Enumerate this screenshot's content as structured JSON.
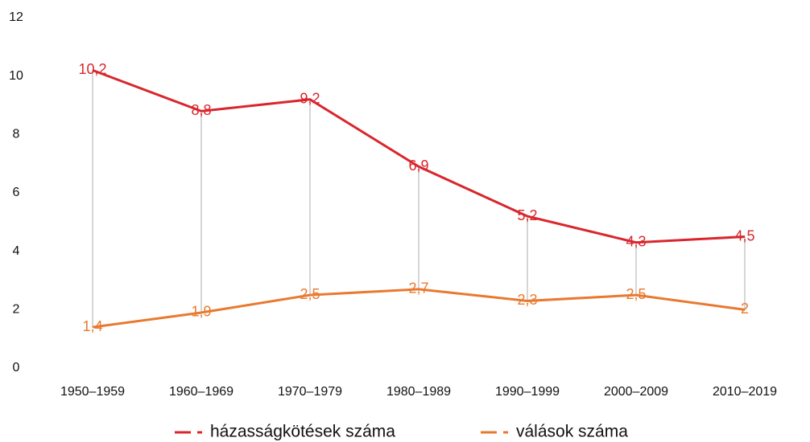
{
  "chart_data": {
    "type": "line",
    "categories": [
      "1950–1959",
      "1960–1969",
      "1970–1979",
      "1980–1989",
      "1990–1999",
      "2000–2009",
      "2010–2019"
    ],
    "series": [
      {
        "name": "házasságkötések száma",
        "color": "#d9262c",
        "values": [
          10.2,
          8.8,
          9.2,
          6.9,
          5.2,
          4.3,
          4.5
        ],
        "value_labels": [
          "10,2",
          "8,8",
          "9,2",
          "6,9",
          "5,2",
          "4,3",
          "4,5"
        ]
      },
      {
        "name": "válások száma",
        "color": "#e9792f",
        "values": [
          1.4,
          1.9,
          2.5,
          2.7,
          2.3,
          2.5,
          2
        ],
        "value_labels": [
          "1,4",
          "1,9",
          "2,5",
          "2,7",
          "2,3",
          "2,5",
          "2"
        ]
      }
    ],
    "ylim": [
      0,
      12
    ],
    "yticks": [
      0,
      2,
      4,
      6,
      8,
      10,
      12
    ],
    "grid": false,
    "drop_lines": true,
    "legend": "bottom"
  }
}
